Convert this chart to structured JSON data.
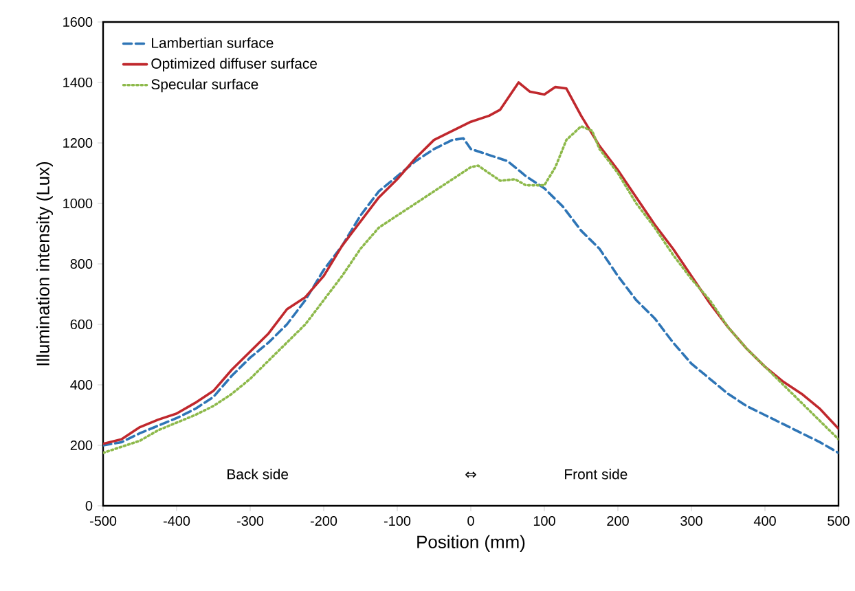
{
  "chart_data": {
    "type": "line",
    "xlabel": "Position (mm)",
    "ylabel": "Illumination intensity (Lux)",
    "xlim": [
      -500,
      500
    ],
    "ylim": [
      0,
      1600
    ],
    "xticks": [
      -500,
      -400,
      -300,
      -200,
      -100,
      0,
      100,
      200,
      300,
      400,
      500
    ],
    "yticks": [
      0,
      200,
      400,
      600,
      800,
      1000,
      1200,
      1400,
      1600
    ],
    "grid": false,
    "legend": "top left",
    "marker": "none",
    "annotations": [
      "Back side",
      "⇔",
      "Front side"
    ],
    "series": [
      {
        "name": "Lambertian surface",
        "color": "#2e75b6",
        "line_style": "dashed",
        "x": [
          -500,
          -475,
          -450,
          -425,
          -400,
          -375,
          -350,
          -325,
          -300,
          -275,
          -250,
          -225,
          -200,
          -175,
          -150,
          -125,
          -100,
          -75,
          -50,
          -25,
          -10,
          0,
          25,
          50,
          75,
          100,
          125,
          150,
          175,
          200,
          225,
          250,
          275,
          300,
          325,
          350,
          375,
          400,
          425,
          450,
          475,
          500
        ],
        "values": [
          200,
          210,
          240,
          265,
          290,
          320,
          360,
          430,
          490,
          540,
          600,
          680,
          780,
          860,
          960,
          1040,
          1090,
          1140,
          1180,
          1210,
          1215,
          1180,
          1160,
          1140,
          1090,
          1050,
          990,
          910,
          850,
          760,
          680,
          620,
          540,
          470,
          420,
          370,
          330,
          300,
          270,
          240,
          210,
          175
        ]
      },
      {
        "name": "Optimized diffuser surface",
        "color": "#c0282d",
        "line_style": "solid",
        "x": [
          -500,
          -475,
          -450,
          -425,
          -400,
          -375,
          -350,
          -325,
          -300,
          -275,
          -250,
          -225,
          -200,
          -175,
          -150,
          -125,
          -100,
          -75,
          -50,
          -25,
          0,
          25,
          40,
          65,
          80,
          100,
          115,
          130,
          150,
          175,
          200,
          225,
          250,
          275,
          300,
          325,
          350,
          375,
          400,
          425,
          450,
          475,
          500
        ],
        "values": [
          205,
          220,
          260,
          285,
          305,
          340,
          380,
          450,
          510,
          570,
          650,
          690,
          760,
          860,
          940,
          1020,
          1080,
          1150,
          1210,
          1240,
          1270,
          1290,
          1310,
          1400,
          1370,
          1360,
          1385,
          1380,
          1290,
          1190,
          1110,
          1020,
          930,
          850,
          760,
          670,
          590,
          520,
          460,
          410,
          370,
          320,
          255
        ]
      },
      {
        "name": "Specular surface",
        "color": "#8db94a",
        "line_style": "dotted",
        "x": [
          -500,
          -475,
          -450,
          -425,
          -400,
          -375,
          -350,
          -325,
          -300,
          -275,
          -250,
          -225,
          -200,
          -175,
          -150,
          -125,
          -100,
          -75,
          -50,
          -25,
          0,
          10,
          25,
          40,
          60,
          75,
          100,
          115,
          130,
          150,
          165,
          175,
          200,
          225,
          250,
          275,
          300,
          325,
          350,
          375,
          400,
          425,
          450,
          475,
          500
        ],
        "values": [
          175,
          195,
          215,
          250,
          275,
          300,
          330,
          370,
          420,
          480,
          540,
          600,
          680,
          760,
          850,
          920,
          960,
          1000,
          1040,
          1080,
          1120,
          1125,
          1100,
          1075,
          1080,
          1060,
          1060,
          1120,
          1210,
          1255,
          1240,
          1180,
          1100,
          1000,
          920,
          830,
          750,
          680,
          590,
          520,
          460,
          400,
          340,
          280,
          220
        ]
      }
    ]
  }
}
